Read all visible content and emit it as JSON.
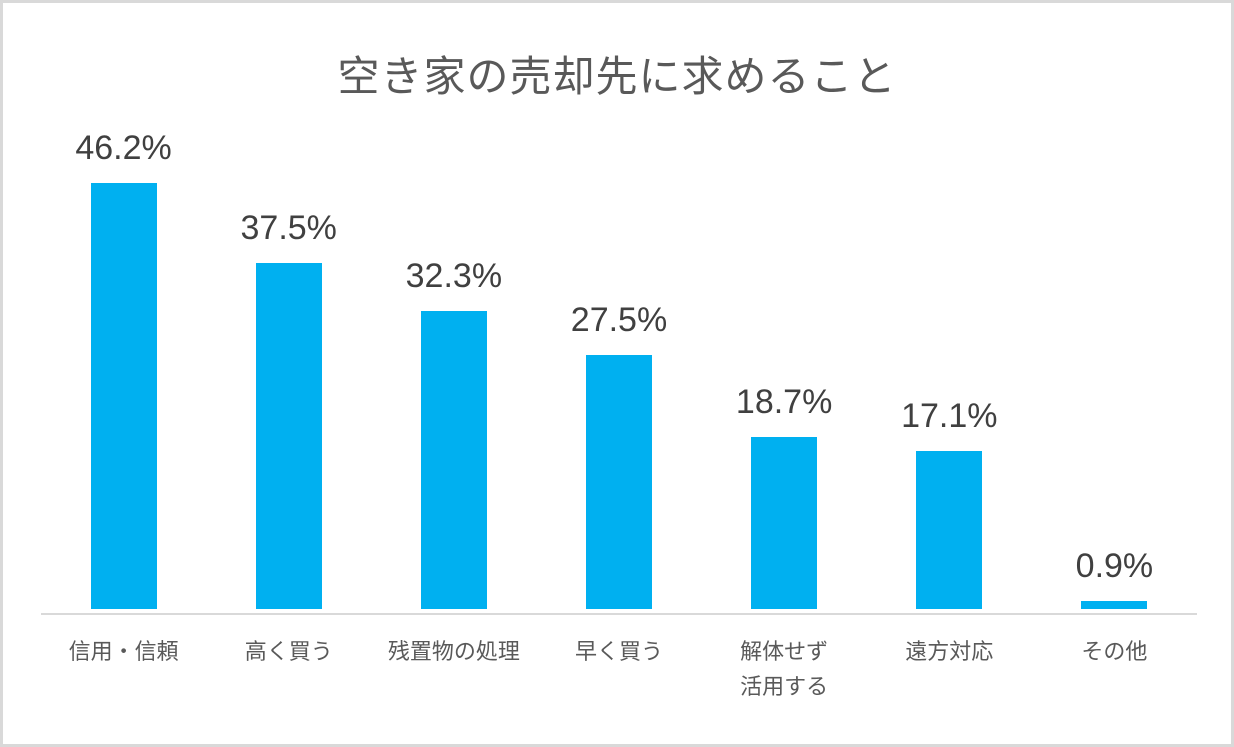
{
  "chart_data": {
    "type": "bar",
    "title": "空き家の売却先に求めること",
    "categories": [
      "信用・信頼",
      "高く買う",
      "残置物の処理",
      "早く買う",
      "解体せず活用する",
      "遠方対応",
      "その他"
    ],
    "categories_display": [
      "信用・信頼",
      "高く買う",
      "残置物の処理",
      "早く買う",
      "解体せず\n活用する",
      "遠方対応",
      "その他"
    ],
    "values": [
      46.2,
      37.5,
      32.3,
      27.5,
      18.7,
      17.1,
      0.9
    ],
    "value_labels": [
      "46.2%",
      "37.5%",
      "32.3%",
      "27.5%",
      "18.7%",
      "17.1%",
      "0.9%"
    ],
    "xlabel": "",
    "ylabel": "",
    "ylim": [
      0,
      50
    ],
    "grid": false,
    "legend": false,
    "bar_color": "#00B0F0"
  },
  "colors": {
    "bar": "#00B0F0",
    "title_text": "#595959",
    "label_text": "#404040",
    "axis_line": "#d9d9d9",
    "frame_border": "#d9d9d9",
    "background": "#ffffff"
  }
}
